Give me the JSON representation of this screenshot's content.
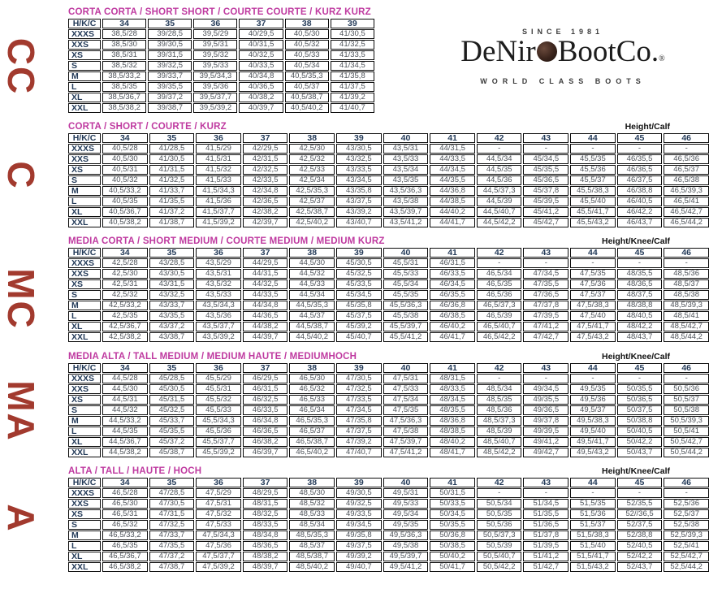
{
  "colors": {
    "title_magenta": "#bf3aa0",
    "header_navy": "#243b59",
    "data_gray": "#4c5158",
    "side_red": "#a23a2e",
    "border_black": "#0a0a0a",
    "logo_ink": "#1d1d1d"
  },
  "logo": {
    "since": "SINCE 1981",
    "name_pre": "DeNir",
    "name_post": "BootCo.",
    "reg": "®",
    "tagline": "WORLD CLASS BOOTS",
    "button_icon": "boot-button"
  },
  "side_labels": [
    "CC",
    "C",
    "MC",
    "MA",
    "A"
  ],
  "tables": [
    {
      "title": "CORTA CORTA / SHORT SHORT / COURTE COURTE / KURZ KURZ",
      "height_label": "",
      "columns": [
        "H/K/C",
        "34",
        "35",
        "36",
        "37",
        "38",
        "39"
      ],
      "rows": [
        {
          "label": "XXXS",
          "cells": [
            "38,5/28",
            "39/28,5",
            "39,5/29",
            "40/29,5",
            "40,5/30",
            "41/30,5"
          ]
        },
        {
          "label": "XXS",
          "cells": [
            "38,5/30",
            "39/30,5",
            "39,5/31",
            "40/31,5",
            "40,5/32",
            "41/32,5"
          ]
        },
        {
          "label": "XS",
          "cells": [
            "38,5/31",
            "39/31,5",
            "39,5/32",
            "40/32,5",
            "40,5/33",
            "41/33,5"
          ]
        },
        {
          "label": "S",
          "cells": [
            "38,5/32",
            "39/32,5",
            "39,5/33",
            "40/33,5",
            "40,5/34",
            "41/34,5"
          ]
        },
        {
          "label": "M",
          "cells": [
            "38,5/33,2",
            "39/33,7",
            "39,5/34,3",
            "40/34,8",
            "40,5/35,3",
            "41/35,8"
          ]
        },
        {
          "label": "L",
          "cells": [
            "38,5/35",
            "39/35,5",
            "39,5/36",
            "40/36,5",
            "40,5/37",
            "41/37,5"
          ]
        },
        {
          "label": "XL",
          "cells": [
            "38,5/36,7",
            "39/37,2",
            "39,5/37,7",
            "40/38,2",
            "40,5/38,7",
            "41/39,2"
          ]
        },
        {
          "label": "XXL",
          "cells": [
            "38,5/38,2",
            "39/38,7",
            "39,5/39,2",
            "40/39,7",
            "40,5/40,2",
            "41/40,7"
          ]
        }
      ]
    },
    {
      "title": "CORTA / SHORT / COURTE / KURZ",
      "height_label": "Height/Calf",
      "columns": [
        "H/K/C",
        "34",
        "35",
        "36",
        "37",
        "38",
        "39",
        "40",
        "41",
        "42",
        "43",
        "44",
        "45",
        "46"
      ],
      "rows": [
        {
          "label": "XXXS",
          "cells": [
            "40,5/28",
            "41/28,5",
            "41,5/29",
            "42/29,5",
            "42,5/30",
            "43/30,5",
            "43,5/31",
            "44/31,5",
            "-",
            "-",
            "-",
            "-",
            "-"
          ]
        },
        {
          "label": "XXS",
          "cells": [
            "40,5/30",
            "41/30,5",
            "41,5/31",
            "42/31,5",
            "42,5/32",
            "43/32,5",
            "43,5/33",
            "44/33,5",
            "44,5/34",
            "45/34,5",
            "45,5/35",
            "46/35,5",
            "46,5/36"
          ]
        },
        {
          "label": "XS",
          "cells": [
            "40,5/31",
            "41/31,5",
            "41,5/32",
            "42/32,5",
            "42,5/33",
            "43/33,5",
            "43,5/34",
            "44/34,5",
            "44,5/35",
            "45/35,5",
            "45,5/36",
            "46/36,5",
            "46,5/37"
          ]
        },
        {
          "label": "S",
          "cells": [
            "40,5/32",
            "41/32,5",
            "41,5/33",
            "42/33,5",
            "42,5/34",
            "43/34,5",
            "43,5/35",
            "44/35,5",
            "44,5/36",
            "45/36,5",
            "45,5/37",
            "46/37,5",
            "46,5/38"
          ]
        },
        {
          "label": "M",
          "cells": [
            "40,5/33,2",
            "41/33,7",
            "41,5/34,3",
            "42/34,8",
            "42,5/35,3",
            "43/35,8",
            "43,5/36,3",
            "44/36,8",
            "44,5/37,3",
            "45/37,8",
            "45,5/38,3",
            "46/38,8",
            "46,5/39,3"
          ]
        },
        {
          "label": "L",
          "cells": [
            "40,5/35",
            "41/35,5",
            "41,5/36",
            "42/36,5",
            "42,5/37",
            "43/37,5",
            "43,5/38",
            "44/38,5",
            "44,5/39",
            "45/39,5",
            "45,5/40",
            "46/40,5",
            "46,5/41"
          ]
        },
        {
          "label": "XL",
          "cells": [
            "40,5/36,7",
            "41/37,2",
            "41,5/37,7",
            "42/38,2",
            "42,5/38,7",
            "43/39,2",
            "43,5/39,7",
            "44/40,2",
            "44,5/40,7",
            "45/41,2",
            "45,5/41,7",
            "46/42,2",
            "46,5/42,7"
          ]
        },
        {
          "label": "XXL",
          "cells": [
            "40,5/38,2",
            "41/38,7",
            "41,5/39,2",
            "42/39,7",
            "42,5/40,2",
            "43/40,7",
            "43,5/41,2",
            "44/41,7",
            "44,5/42,2",
            "45/42,7",
            "45,5/43,2",
            "46/43,7",
            "46,5/44,2"
          ]
        }
      ]
    },
    {
      "title": "MEDIA CORTA / SHORT MEDIUM / COURTE MEDIUM / MEDIUM KURZ",
      "height_label": "Height/Knee/Calf",
      "columns": [
        "H/K/C",
        "34",
        "35",
        "36",
        "37",
        "38",
        "39",
        "40",
        "41",
        "42",
        "43",
        "44",
        "45",
        "46"
      ],
      "rows": [
        {
          "label": "XXXS",
          "cells": [
            "42,5/28",
            "43/28,5",
            "43,5/29",
            "44/29,5",
            "44,5/30",
            "45/30,5",
            "45,5/31",
            "46/31,5",
            "-",
            "-",
            "-",
            "-",
            "-"
          ]
        },
        {
          "label": "XXS",
          "cells": [
            "42,5/30",
            "43/30,5",
            "43,5/31",
            "44/31,5",
            "44,5/32",
            "45/32,5",
            "45,5/33",
            "46/33,5",
            "46,5/34",
            "47/34,5",
            "47,5/35",
            "48/35,5",
            "48,5/36"
          ]
        },
        {
          "label": "XS",
          "cells": [
            "42,5/31",
            "43/31,5",
            "43,5/32",
            "44/32,5",
            "44,5/33",
            "45/33,5",
            "45,5/34",
            "46/34,5",
            "46,5/35",
            "47/35,5",
            "47,5/36",
            "48/36,5",
            "48,5/37"
          ]
        },
        {
          "label": "S",
          "cells": [
            "42,5/32",
            "43/32,5",
            "43,5/33",
            "44/33,5",
            "44,5/34",
            "45/34,5",
            "45,5/35",
            "46/35,5",
            "46,5/36",
            "47/36,5",
            "47,5/37",
            "48/37,5",
            "48,5/38"
          ]
        },
        {
          "label": "M",
          "cells": [
            "42,5/33,2",
            "43/33,7",
            "43,5/34,3",
            "44/34,8",
            "44,5/35,3",
            "45/35,8",
            "45,5/36,3",
            "46/36,8",
            "46,5/37,3",
            "47/37,8",
            "47,5/38,3",
            "48/38,8",
            "48,5/39,3"
          ]
        },
        {
          "label": "L",
          "cells": [
            "42,5/35",
            "43/35,5",
            "43,5/36",
            "44/36,5",
            "44,5/37",
            "45/37,5",
            "45,5/38",
            "46/38,5",
            "46,5/39",
            "47/39,5",
            "47,5/40",
            "48/40,5",
            "48,5/41"
          ]
        },
        {
          "label": "XL",
          "cells": [
            "42,5/36,7",
            "43/37,2",
            "43,5/37,7",
            "44/38,2",
            "44,5/38,7",
            "45/39,2",
            "45,5/39,7",
            "46/40,2",
            "46,5/40,7",
            "47/41,2",
            "47,5/41,7",
            "48/42,2",
            "48,5/42,7"
          ]
        },
        {
          "label": "XXL",
          "cells": [
            "42,5/38,2",
            "43/38,7",
            "43,5/39,2",
            "44/39,7",
            "44,5/40,2",
            "45/40,7",
            "45,5/41,2",
            "46/41,7",
            "46,5/42,2",
            "47/42,7",
            "47,5/43,2",
            "48/43,7",
            "48,5/44,2"
          ]
        }
      ]
    },
    {
      "title": "MEDIA ALTA / TALL MEDIUM / MEDIUM HAUTE / MEDIUMHOCH",
      "height_label": "Height/Knee/Calf",
      "columns": [
        "H/K/C",
        "34",
        "35",
        "36",
        "37",
        "38",
        "39",
        "40",
        "41",
        "42",
        "43",
        "44",
        "45",
        "46"
      ],
      "rows": [
        {
          "label": "XXXS",
          "cells": [
            "44,5/28",
            "45/28,5",
            "45,5/29",
            "46/29,5",
            "46,5/30",
            "47/30,5",
            "47,5/31",
            "48/31,5",
            "-",
            "-",
            "-",
            "-",
            "-"
          ]
        },
        {
          "label": "XXS",
          "cells": [
            "44,5/30",
            "45/30,5",
            "45,5/31",
            "46/31,5",
            "46,5/32",
            "47/32,5",
            "47,5/33",
            "48/33,5",
            "48,5/34",
            "49/34,5",
            "49,5/35",
            "50/35,5",
            "50,5/36"
          ]
        },
        {
          "label": "XS",
          "cells": [
            "44,5/31",
            "45/31,5",
            "45,5/32",
            "46/32,5",
            "46,5/33",
            "47/33,5",
            "47,5/34",
            "48/34,5",
            "48,5/35",
            "49/35,5",
            "49,5/36",
            "50/36,5",
            "50,5/37"
          ]
        },
        {
          "label": "S",
          "cells": [
            "44,5/32",
            "45/32,5",
            "45,5/33",
            "46/33,5",
            "46,5/34",
            "47/34,5",
            "47,5/35",
            "48/35,5",
            "48,5/36",
            "49/36,5",
            "49,5/37",
            "50/37,5",
            "50,5/38"
          ]
        },
        {
          "label": "M",
          "cells": [
            "44,5/33,2",
            "45/33,7",
            "45,5/34,3",
            "46/34,8",
            "46,5/35,3",
            "47/35,8",
            "47,5/36,3",
            "48/36,8",
            "48,5/37,3",
            "49/37,8",
            "49,5/38,3",
            "50/38,8",
            "50,5/39,3"
          ]
        },
        {
          "label": "L",
          "cells": [
            "44,5/35",
            "45/35,5",
            "45,5/36",
            "46/36,5",
            "46,5/37",
            "47/37,5",
            "47,5/38",
            "48/38,5",
            "48,5/39",
            "49/39,5",
            "49,5/40",
            "50/40,5",
            "50,5/41"
          ]
        },
        {
          "label": "XL",
          "cells": [
            "44,5/36,7",
            "45/37,2",
            "45,5/37,7",
            "46/38,2",
            "46,5/38,7",
            "47/39,2",
            "47,5/39,7",
            "48/40,2",
            "48,5/40,7",
            "49/41,2",
            "49,5/41,7",
            "50/42,2",
            "50,5/42,7"
          ]
        },
        {
          "label": "XXL",
          "cells": [
            "44,5/38,2",
            "45/38,7",
            "45,5/39,2",
            "46/39,7",
            "46,5/40,2",
            "47/40,7",
            "47,5/41,2",
            "48/41,7",
            "48,5/42,2",
            "49/42,7",
            "49,5/43,2",
            "50/43,7",
            "50,5/44,2"
          ]
        }
      ]
    },
    {
      "title": "ALTA / TALL / HAUTE / HOCH",
      "height_label": "Height/Knee/Calf",
      "columns": [
        "H/K/C",
        "34",
        "35",
        "36",
        "37",
        "38",
        "39",
        "40",
        "41",
        "42",
        "43",
        "44",
        "45",
        "46"
      ],
      "rows": [
        {
          "label": "XXXS",
          "cells": [
            "46,5/28",
            "47/28,5",
            "47,5/29",
            "48/29,5",
            "48,5/30",
            "49/30,5",
            "49,5/31",
            "50/31,5",
            "-",
            "-",
            "-",
            "-",
            "-"
          ]
        },
        {
          "label": "XXS",
          "cells": [
            "46,5/30",
            "47/30,5",
            "47,5/31",
            "48/31,5",
            "48,5/32",
            "49/32,5",
            "49,5/33",
            "50/33,5",
            "50,5/34",
            "51/34,5",
            "51,5/35",
            "52/35,5",
            "52,5/36"
          ]
        },
        {
          "label": "XS",
          "cells": [
            "46,5/31",
            "47/31,5",
            "47,5/32",
            "48/32,5",
            "48,5/33",
            "49/33,5",
            "49,5/34",
            "50/34,5",
            "50,5/35",
            "51/35,5",
            "51,5/36",
            "52//36,5",
            "52,5/37"
          ]
        },
        {
          "label": "S",
          "cells": [
            "46,5/32",
            "47/32,5",
            "47,5/33",
            "48/33,5",
            "48,5/34",
            "49/34,5",
            "49,5/35",
            "50/35,5",
            "50,5/36",
            "51/36,5",
            "51,5/37",
            "52/37,5",
            "52,5/38"
          ]
        },
        {
          "label": "M",
          "cells": [
            "46,5/33,2",
            "47/33,7",
            "47,5/34,3",
            "48/34,8",
            "48,5/35,3",
            "49/35,8",
            "49,5/36,3",
            "50/36,8",
            "50,5/37,3",
            "51/37,8",
            "51,5/38,3",
            "52/38,8",
            "52,5/39,3"
          ]
        },
        {
          "label": "L",
          "cells": [
            "46,5/35",
            "47/35,5",
            "47,5/36",
            "48/36,5",
            "48,5/37",
            "49/37,5",
            "49,5/38",
            "50/38,5",
            "50,5/39",
            "51/39,5",
            "51,5/40",
            "52/40,5",
            "52,5/41"
          ]
        },
        {
          "label": "XL",
          "cells": [
            "46,5/36,7",
            "47/37,2",
            "47,5/37,7",
            "48/38,2",
            "48,5/38,7",
            "49/39,2",
            "49,5/39,7",
            "50/40,2",
            "50,5/40,7",
            "51/41,2",
            "51,5/41,7",
            "52/42,2",
            "52,5/42,7"
          ]
        },
        {
          "label": "XXL",
          "cells": [
            "46,5/38,2",
            "47/38,7",
            "47,5/39,2",
            "48/39,7",
            "48,5/40,2",
            "49/40,7",
            "49,5/41,2",
            "50/41,7",
            "50,5/42,2",
            "51/42,7",
            "51,5/43,2",
            "52/43,7",
            "52,5/44,2"
          ]
        }
      ]
    }
  ]
}
